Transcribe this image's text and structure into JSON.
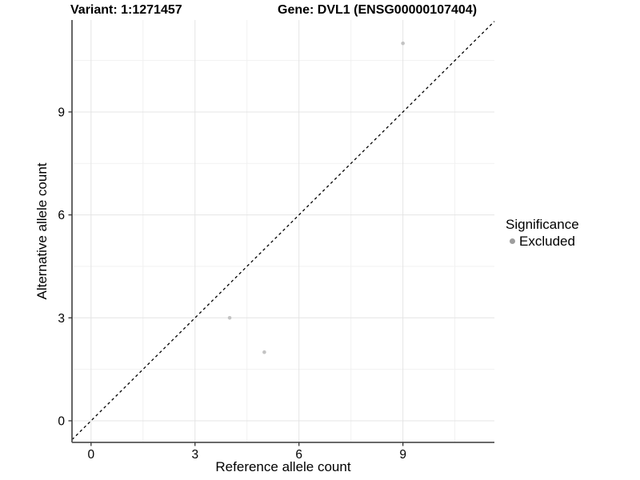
{
  "header": {
    "variant_title": "Variant: 1:1271457",
    "gene_title": "Gene: DVL1 (ENSG00000107404)"
  },
  "chart_data": {
    "type": "scatter",
    "title": "Variant: 1:1271457   Gene: DVL1 (ENSG00000107404)",
    "xlabel": "Reference allele count",
    "ylabel": "Alternative allele count",
    "xlim": [
      -0.55,
      11.64
    ],
    "ylim": [
      -0.63,
      11.68
    ],
    "xticks": [
      0,
      3,
      6,
      9
    ],
    "yticks": [
      0,
      3,
      6,
      9
    ],
    "x_minor_ticks": [
      1.5,
      4.5,
      7.5,
      10.5
    ],
    "y_minor_ticks": [
      1.5,
      4.5,
      7.5,
      10.5
    ],
    "grid": true,
    "series": [
      {
        "name": "Excluded",
        "color": "#c3c3c3",
        "point_radius": 2.3,
        "points": [
          {
            "x": 4,
            "y": 3
          },
          {
            "x": 5,
            "y": 2
          },
          {
            "x": 9,
            "y": 11
          }
        ]
      }
    ],
    "identity_line": {
      "slope": 1,
      "intercept": 0,
      "style": "dashed",
      "color": "#000000"
    },
    "legend": {
      "position": "right",
      "title": "Significance",
      "entries": [
        {
          "label": "Excluded",
          "color": "#9d9d9d"
        }
      ]
    },
    "colors": {
      "grid_major": "#e4e4e4",
      "grid_minor": "#f1f1f1",
      "axis_line": "#555555",
      "tick_mark": "#333333",
      "tick_label": "#000000",
      "background": "#ffffff"
    }
  }
}
